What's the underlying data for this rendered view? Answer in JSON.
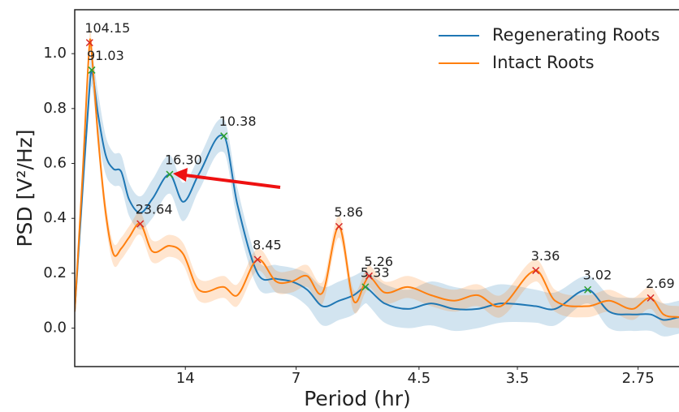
{
  "chart_data": {
    "type": "line",
    "x_label": "Period (hr)",
    "y_label": "PSD [V²/Hz]",
    "xlim": [
      0,
      0.39
    ],
    "ylim": [
      -0.14,
      1.16
    ],
    "xticks": [
      {
        "value": 0.0714,
        "label": "14"
      },
      {
        "value": 0.1429,
        "label": "7"
      },
      {
        "value": 0.2222,
        "label": "4.5"
      },
      {
        "value": 0.2857,
        "label": "3.5"
      },
      {
        "value": 0.3636,
        "label": "2.75"
      }
    ],
    "yticks": [
      {
        "value": 0,
        "label": "0.0"
      },
      0.2,
      0.4,
      0.6,
      0.8,
      {
        "value": 1,
        "label": "1.0"
      }
    ],
    "legend": "upper right",
    "x": [
      0,
      0.005,
      0.0096,
      0.011,
      0.015,
      0.02,
      0.025,
      0.03,
      0.035,
      0.0423,
      0.05,
      0.0613,
      0.07,
      0.08,
      0.0963,
      0.105,
      0.118,
      0.13,
      0.14,
      0.15,
      0.16,
      0.1706,
      0.18,
      0.1876,
      0.19,
      0.2,
      0.215,
      0.23,
      0.245,
      0.26,
      0.275,
      0.2976,
      0.31,
      0.3311,
      0.345,
      0.36,
      0.3717,
      0.38,
      0.39
    ],
    "series": [
      {
        "name": "Regenerating Roots",
        "color": "#1f77b4",
        "peak_color": "#2ca02c",
        "values": [
          0.06,
          0.5,
          0.88,
          0.94,
          0.78,
          0.63,
          0.58,
          0.57,
          0.47,
          0.42,
          0.47,
          0.56,
          0.46,
          0.56,
          0.7,
          0.45,
          0.2,
          0.18,
          0.17,
          0.14,
          0.08,
          0.1,
          0.12,
          0.15,
          0.14,
          0.09,
          0.07,
          0.09,
          0.07,
          0.07,
          0.09,
          0.08,
          0.07,
          0.14,
          0.06,
          0.05,
          0.05,
          0.03,
          0.04
        ],
        "lower": [
          0.05,
          0.44,
          0.82,
          0.88,
          0.7,
          0.56,
          0.52,
          0.51,
          0.41,
          0.36,
          0.4,
          0.49,
          0.39,
          0.5,
          0.64,
          0.39,
          0.15,
          0.13,
          0.12,
          0.08,
          0.01,
          0.03,
          0.05,
          0.09,
          0.08,
          0.02,
          0.0,
          0.01,
          -0.01,
          0.0,
          0.02,
          0.02,
          0.01,
          0.09,
          0.0,
          -0.01,
          -0.01,
          -0.03,
          -0.02
        ],
        "upper": [
          0.07,
          0.56,
          0.94,
          1.0,
          0.86,
          0.7,
          0.64,
          0.63,
          0.53,
          0.48,
          0.54,
          0.63,
          0.53,
          0.62,
          0.76,
          0.51,
          0.25,
          0.23,
          0.22,
          0.2,
          0.15,
          0.17,
          0.19,
          0.21,
          0.2,
          0.16,
          0.14,
          0.17,
          0.15,
          0.14,
          0.16,
          0.14,
          0.13,
          0.19,
          0.12,
          0.11,
          0.11,
          0.09,
          0.1
        ],
        "peaks": [
          {
            "x": 0.011,
            "y": 0.94,
            "label": "91.03"
          },
          {
            "x": 0.0613,
            "y": 0.56,
            "label": "16.30"
          },
          {
            "x": 0.0963,
            "y": 0.7,
            "label": "10.38"
          },
          {
            "x": 0.1876,
            "y": 0.15,
            "label": "5.33"
          },
          {
            "x": 0.3311,
            "y": 0.14,
            "label": "3.02"
          }
        ]
      },
      {
        "name": "Intact Roots",
        "color": "#ff7f0e",
        "peak_color": "#d62728",
        "values": [
          0.06,
          0.55,
          1.04,
          1.0,
          0.7,
          0.42,
          0.27,
          0.29,
          0.33,
          0.38,
          0.28,
          0.3,
          0.27,
          0.14,
          0.15,
          0.12,
          0.25,
          0.17,
          0.17,
          0.19,
          0.13,
          0.37,
          0.1,
          0.17,
          0.19,
          0.13,
          0.15,
          0.12,
          0.1,
          0.12,
          0.08,
          0.21,
          0.1,
          0.08,
          0.1,
          0.07,
          0.11,
          0.05,
          0.04
        ],
        "lower": [
          0.05,
          0.51,
          1.0,
          0.96,
          0.66,
          0.38,
          0.23,
          0.25,
          0.29,
          0.34,
          0.24,
          0.26,
          0.23,
          0.1,
          0.11,
          0.08,
          0.21,
          0.13,
          0.13,
          0.15,
          0.09,
          0.33,
          0.06,
          0.13,
          0.15,
          0.09,
          0.11,
          0.08,
          0.06,
          0.08,
          0.04,
          0.17,
          0.06,
          0.04,
          0.06,
          0.03,
          0.07,
          0.01,
          0.0
        ],
        "upper": [
          0.07,
          0.59,
          1.08,
          1.04,
          0.74,
          0.46,
          0.31,
          0.33,
          0.37,
          0.42,
          0.32,
          0.34,
          0.31,
          0.18,
          0.19,
          0.16,
          0.29,
          0.21,
          0.21,
          0.23,
          0.17,
          0.41,
          0.14,
          0.21,
          0.23,
          0.17,
          0.19,
          0.16,
          0.14,
          0.16,
          0.12,
          0.25,
          0.14,
          0.12,
          0.14,
          0.11,
          0.15,
          0.09,
          0.08
        ],
        "peaks": [
          {
            "x": 0.0096,
            "y": 1.04,
            "label": "104.15"
          },
          {
            "x": 0.0423,
            "y": 0.38,
            "label": "23.64"
          },
          {
            "x": 0.118,
            "y": 0.25,
            "label": "8.45"
          },
          {
            "x": 0.1706,
            "y": 0.37,
            "label": "5.86"
          },
          {
            "x": 0.19,
            "y": 0.19,
            "label": "5.26"
          },
          {
            "x": 0.2976,
            "y": 0.21,
            "label": "3.36"
          },
          {
            "x": 0.3717,
            "y": 0.11,
            "label": "2.69"
          }
        ]
      }
    ]
  }
}
